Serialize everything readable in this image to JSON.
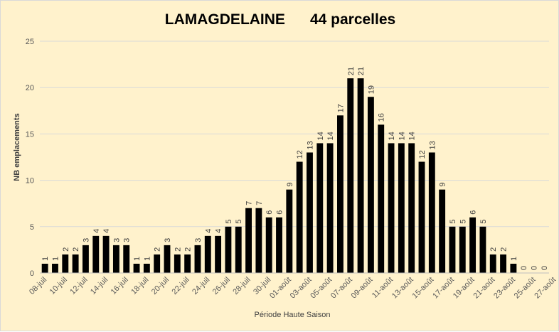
{
  "chart_data": {
    "type": "bar",
    "title": "LAMAGDELAINE      44 parcelles",
    "xlabel": "Période Haute Saison",
    "ylabel": "NB emplacements",
    "ylim": [
      0,
      25
    ],
    "yticks": [
      0,
      5,
      10,
      15,
      20,
      25
    ],
    "grid": true,
    "legend": "none",
    "bar_color": "#000000",
    "background_color": "#fff2cc",
    "x_tick_labels": [
      "08-juil",
      "10-juil",
      "12-juil",
      "14-juil",
      "16-juil",
      "18-juil",
      "20-juil",
      "22-juil",
      "24-juil",
      "26-juil",
      "28-juil",
      "30-juil",
      "01-août",
      "03-août",
      "05-août",
      "07-août",
      "09-août",
      "11-août",
      "13-août",
      "15-août",
      "17-août",
      "19-août",
      "21-août",
      "23-août",
      "25-août",
      "27-août"
    ],
    "values": [
      1,
      1,
      2,
      2,
      3,
      4,
      4,
      3,
      3,
      1,
      1,
      2,
      3,
      2,
      2,
      3,
      4,
      4,
      5,
      5,
      7,
      7,
      6,
      6,
      9,
      12,
      13,
      14,
      14,
      17,
      21,
      21,
      19,
      16,
      14,
      14,
      14,
      12,
      13,
      9,
      5,
      5,
      6,
      5,
      2,
      2,
      1,
      0,
      0,
      0
    ]
  }
}
